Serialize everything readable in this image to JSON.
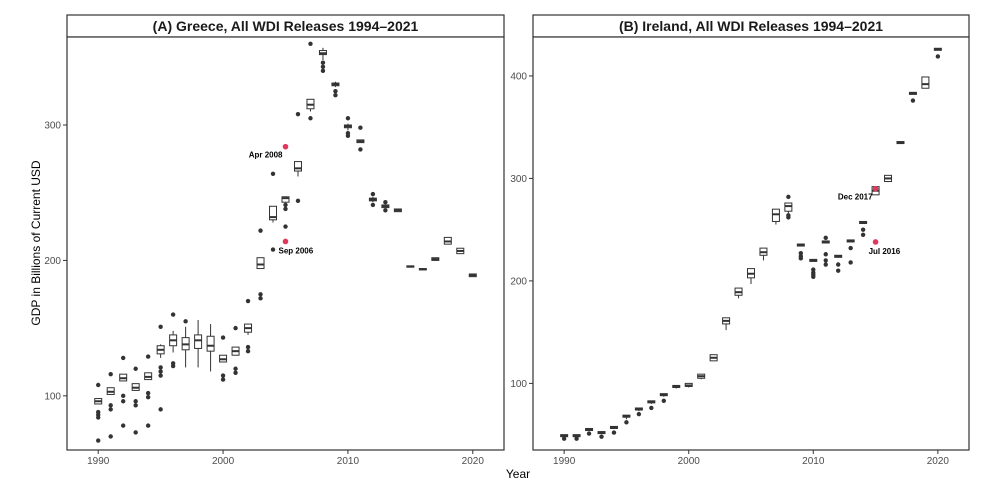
{
  "figure": {
    "ylabel": "GDP in Billions of Current USD",
    "xlabel": "Year"
  },
  "colors": {
    "outlier": "#333333",
    "highlight": "#e0385d",
    "box_stroke": "#333333",
    "box_fill": "#ffffff",
    "axis": "#333333",
    "strip_fill": "#ffffff"
  },
  "chart_data": [
    {
      "type": "box",
      "title": "(A) Greece, All WDI Releases 1994–2021",
      "xlim": [
        1987.5,
        2022.5
      ],
      "ylim": [
        60,
        365
      ],
      "xticks": [
        1990,
        2000,
        2010,
        2020
      ],
      "yticks": [
        100,
        200,
        300
      ],
      "boxes": [
        {
          "x": 1990,
          "q1": 94,
          "median": 96,
          "q3": 98,
          "lo": 94,
          "hi": 98,
          "outliers": [
            67,
            84,
            86,
            88,
            108
          ]
        },
        {
          "x": 1991,
          "q1": 101,
          "median": 103,
          "q3": 106,
          "lo": 101,
          "hi": 106,
          "outliers": [
            70,
            90,
            93,
            116
          ]
        },
        {
          "x": 1992,
          "q1": 111,
          "median": 113,
          "q3": 116,
          "lo": 111,
          "hi": 116,
          "outliers": [
            78,
            96,
            100,
            128
          ]
        },
        {
          "x": 1993,
          "q1": 104,
          "median": 106,
          "q3": 109,
          "lo": 104,
          "hi": 109,
          "outliers": [
            73,
            93,
            96,
            120
          ]
        },
        {
          "x": 1994,
          "q1": 112,
          "median": 114,
          "q3": 117,
          "lo": 112,
          "hi": 117,
          "outliers": [
            78,
            99,
            102,
            129
          ]
        },
        {
          "x": 1995,
          "q1": 131,
          "median": 134,
          "q3": 137,
          "lo": 128,
          "hi": 138,
          "outliers": [
            90,
            115,
            118,
            121,
            151
          ]
        },
        {
          "x": 1996,
          "q1": 137,
          "median": 141,
          "q3": 145,
          "lo": 132,
          "hi": 148,
          "outliers": [
            122,
            124,
            160
          ]
        },
        {
          "x": 1997,
          "q1": 134,
          "median": 138,
          "q3": 143,
          "lo": 121,
          "hi": 151,
          "outliers": [
            155
          ]
        },
        {
          "x": 1998,
          "q1": 135,
          "median": 141,
          "q3": 145,
          "lo": 121,
          "hi": 156,
          "outliers": []
        },
        {
          "x": 1999,
          "q1": 133,
          "median": 137,
          "q3": 144,
          "lo": 118,
          "hi": 153,
          "outliers": []
        },
        {
          "x": 2000,
          "q1": 125,
          "median": 127,
          "q3": 130,
          "lo": 125,
          "hi": 130,
          "outliers": [
            112,
            115,
            143
          ]
        },
        {
          "x": 2001,
          "q1": 130,
          "median": 133,
          "q3": 136,
          "lo": 130,
          "hi": 136,
          "outliers": [
            117,
            120,
            150
          ]
        },
        {
          "x": 2002,
          "q1": 147,
          "median": 150,
          "q3": 153,
          "lo": 145,
          "hi": 153,
          "outliers": [
            133,
            136,
            170
          ]
        },
        {
          "x": 2003,
          "q1": 194,
          "median": 197,
          "q3": 202,
          "lo": 194,
          "hi": 202,
          "outliers": [
            172,
            175,
            222
          ]
        },
        {
          "x": 2004,
          "q1": 230,
          "median": 232,
          "q3": 240,
          "lo": 228,
          "hi": 240,
          "outliers": [
            208,
            264
          ]
        },
        {
          "x": 2005,
          "q1": 243,
          "median": 246,
          "q3": 247,
          "lo": 243,
          "hi": 247,
          "outliers": [
            225,
            238,
            241
          ]
        },
        {
          "x": 2006,
          "q1": 266,
          "median": 268,
          "q3": 273,
          "lo": 262,
          "hi": 273,
          "outliers": [
            244,
            308
          ]
        },
        {
          "x": 2007,
          "q1": 312,
          "median": 315,
          "q3": 319,
          "lo": 310,
          "hi": 319,
          "outliers": [
            305,
            360
          ]
        },
        {
          "x": 2008,
          "q1": 352,
          "median": 353,
          "q3": 355,
          "lo": 348,
          "hi": 357,
          "outliers": [
            340,
            343,
            346
          ]
        },
        {
          "x": 2009,
          "q1": 329,
          "median": 330,
          "q3": 331,
          "lo": 328,
          "hi": 332,
          "outliers": [
            322,
            325
          ]
        },
        {
          "x": 2010,
          "q1": 298,
          "median": 299,
          "q3": 300,
          "lo": 296,
          "hi": 301,
          "outliers": [
            292,
            294,
            305
          ]
        },
        {
          "x": 2011,
          "q1": 287,
          "median": 288,
          "q3": 289,
          "lo": 287,
          "hi": 289,
          "outliers": [
            282,
            298
          ]
        },
        {
          "x": 2012,
          "q1": 244,
          "median": 245,
          "q3": 246,
          "lo": 243,
          "hi": 247,
          "outliers": [
            241,
            249
          ]
        },
        {
          "x": 2013,
          "q1": 239,
          "median": 240,
          "q3": 241,
          "lo": 238,
          "hi": 241,
          "outliers": [
            237,
            243
          ]
        },
        {
          "x": 2014,
          "q1": 236,
          "median": 237,
          "q3": 238,
          "lo": 236,
          "hi": 238,
          "outliers": []
        },
        {
          "x": 2015,
          "q1": 195,
          "median": 195.5,
          "q3": 196,
          "lo": 195,
          "hi": 196,
          "outliers": []
        },
        {
          "x": 2016,
          "q1": 193,
          "median": 193.5,
          "q3": 194,
          "lo": 193,
          "hi": 194,
          "outliers": []
        },
        {
          "x": 2017,
          "q1": 200,
          "median": 201,
          "q3": 202,
          "lo": 200,
          "hi": 202,
          "outliers": []
        },
        {
          "x": 2018,
          "q1": 212,
          "median": 214,
          "q3": 217,
          "lo": 212,
          "hi": 217,
          "outliers": []
        },
        {
          "x": 2019,
          "q1": 205,
          "median": 207,
          "q3": 209,
          "lo": 205,
          "hi": 209,
          "outliers": []
        },
        {
          "x": 2020,
          "q1": 188,
          "median": 189,
          "q3": 190,
          "lo": 188,
          "hi": 190,
          "outliers": []
        }
      ],
      "highlights": [
        {
          "x": 2005,
          "y": 284,
          "label": "Apr 2008",
          "label_side": "above-left"
        },
        {
          "x": 2005,
          "y": 214,
          "label": "Sep 2006",
          "label_side": "below-right"
        }
      ]
    },
    {
      "type": "box",
      "title": "(B) Ireland, All WDI Releases 1994–2021",
      "xlim": [
        1987.5,
        2022.5
      ],
      "ylim": [
        35,
        438
      ],
      "xticks": [
        1990,
        2000,
        2010,
        2020
      ],
      "yticks": [
        100,
        200,
        300,
        400
      ],
      "boxes": [
        {
          "x": 1990,
          "q1": 48,
          "median": 49,
          "q3": 50,
          "lo": 48,
          "hi": 50,
          "outliers": [
            46
          ]
        },
        {
          "x": 1991,
          "q1": 48,
          "median": 49,
          "q3": 50,
          "lo": 48,
          "hi": 50,
          "outliers": [
            46
          ]
        },
        {
          "x": 1992,
          "q1": 54,
          "median": 55,
          "q3": 56,
          "lo": 54,
          "hi": 56,
          "outliers": [
            51
          ]
        },
        {
          "x": 1993,
          "q1": 51,
          "median": 52,
          "q3": 53,
          "lo": 51,
          "hi": 53,
          "outliers": [
            48
          ]
        },
        {
          "x": 1994,
          "q1": 56,
          "median": 57,
          "q3": 58,
          "lo": 56,
          "hi": 58,
          "outliers": [
            52
          ]
        },
        {
          "x": 1995,
          "q1": 67,
          "median": 68,
          "q3": 69,
          "lo": 65,
          "hi": 69,
          "outliers": [
            62
          ]
        },
        {
          "x": 1996,
          "q1": 74,
          "median": 75,
          "q3": 76,
          "lo": 73,
          "hi": 76,
          "outliers": [
            70
          ]
        },
        {
          "x": 1997,
          "q1": 81,
          "median": 82,
          "q3": 83,
          "lo": 80,
          "hi": 83,
          "outliers": [
            76
          ]
        },
        {
          "x": 1998,
          "q1": 88,
          "median": 89,
          "q3": 90,
          "lo": 87,
          "hi": 90,
          "outliers": [
            83
          ]
        },
        {
          "x": 1999,
          "q1": 96,
          "median": 97,
          "q3": 98,
          "lo": 95,
          "hi": 98,
          "outliers": []
        },
        {
          "x": 2000,
          "q1": 97,
          "median": 98,
          "q3": 100,
          "lo": 96,
          "hi": 100,
          "outliers": []
        },
        {
          "x": 2001,
          "q1": 105,
          "median": 107,
          "q3": 109,
          "lo": 104,
          "hi": 109,
          "outliers": []
        },
        {
          "x": 2002,
          "q1": 122,
          "median": 125,
          "q3": 128,
          "lo": 122,
          "hi": 128,
          "outliers": []
        },
        {
          "x": 2003,
          "q1": 158,
          "median": 161,
          "q3": 164,
          "lo": 152,
          "hi": 164,
          "outliers": []
        },
        {
          "x": 2004,
          "q1": 186,
          "median": 189,
          "q3": 193,
          "lo": 183,
          "hi": 193,
          "outliers": []
        },
        {
          "x": 2005,
          "q1": 203,
          "median": 207,
          "q3": 212,
          "lo": 197,
          "hi": 212,
          "outliers": []
        },
        {
          "x": 2006,
          "q1": 225,
          "median": 228,
          "q3": 232,
          "lo": 220,
          "hi": 232,
          "outliers": []
        },
        {
          "x": 2007,
          "q1": 258,
          "median": 265,
          "q3": 270,
          "lo": 255,
          "hi": 270,
          "outliers": []
        },
        {
          "x": 2008,
          "q1": 268,
          "median": 273,
          "q3": 276,
          "lo": 266,
          "hi": 276,
          "outliers": [
            262,
            264,
            282
          ]
        },
        {
          "x": 2009,
          "q1": 234,
          "median": 235,
          "q3": 236,
          "lo": 234,
          "hi": 236,
          "outliers": [
            222,
            224,
            227
          ]
        },
        {
          "x": 2010,
          "q1": 219,
          "median": 220,
          "q3": 221,
          "lo": 219,
          "hi": 221,
          "outliers": [
            204,
            206,
            208,
            211
          ]
        },
        {
          "x": 2011,
          "q1": 237,
          "median": 238,
          "q3": 239,
          "lo": 237,
          "hi": 239,
          "outliers": [
            216,
            220,
            226,
            242
          ]
        },
        {
          "x": 2012,
          "q1": 223,
          "median": 224,
          "q3": 225,
          "lo": 223,
          "hi": 225,
          "outliers": [
            210,
            216
          ]
        },
        {
          "x": 2013,
          "q1": 238,
          "median": 239,
          "q3": 240,
          "lo": 238,
          "hi": 240,
          "outliers": [
            218,
            232
          ]
        },
        {
          "x": 2014,
          "q1": 256,
          "median": 257,
          "q3": 258,
          "lo": 256,
          "hi": 258,
          "outliers": [
            245,
            250
          ]
        },
        {
          "x": 2015,
          "q1": 284,
          "median": 288,
          "q3": 292,
          "lo": 284,
          "hi": 292,
          "outliers": []
        },
        {
          "x": 2016,
          "q1": 297,
          "median": 300,
          "q3": 303,
          "lo": 297,
          "hi": 303,
          "outliers": []
        },
        {
          "x": 2017,
          "q1": 334,
          "median": 335,
          "q3": 336,
          "lo": 334,
          "hi": 336,
          "outliers": []
        },
        {
          "x": 2018,
          "q1": 382,
          "median": 383,
          "q3": 384,
          "lo": 382,
          "hi": 384,
          "outliers": [
            376
          ]
        },
        {
          "x": 2019,
          "q1": 388,
          "median": 392,
          "q3": 399,
          "lo": 388,
          "hi": 399,
          "outliers": []
        },
        {
          "x": 2020,
          "q1": 425,
          "median": 426,
          "q3": 427,
          "lo": 425,
          "hi": 427,
          "outliers": [
            419
          ]
        }
      ],
      "highlights": [
        {
          "x": 2015,
          "y": 290,
          "label": "Dec 2017",
          "label_side": "above-left"
        },
        {
          "x": 2015,
          "y": 238,
          "label": "Jul 2016",
          "label_side": "below-right"
        }
      ]
    }
  ]
}
